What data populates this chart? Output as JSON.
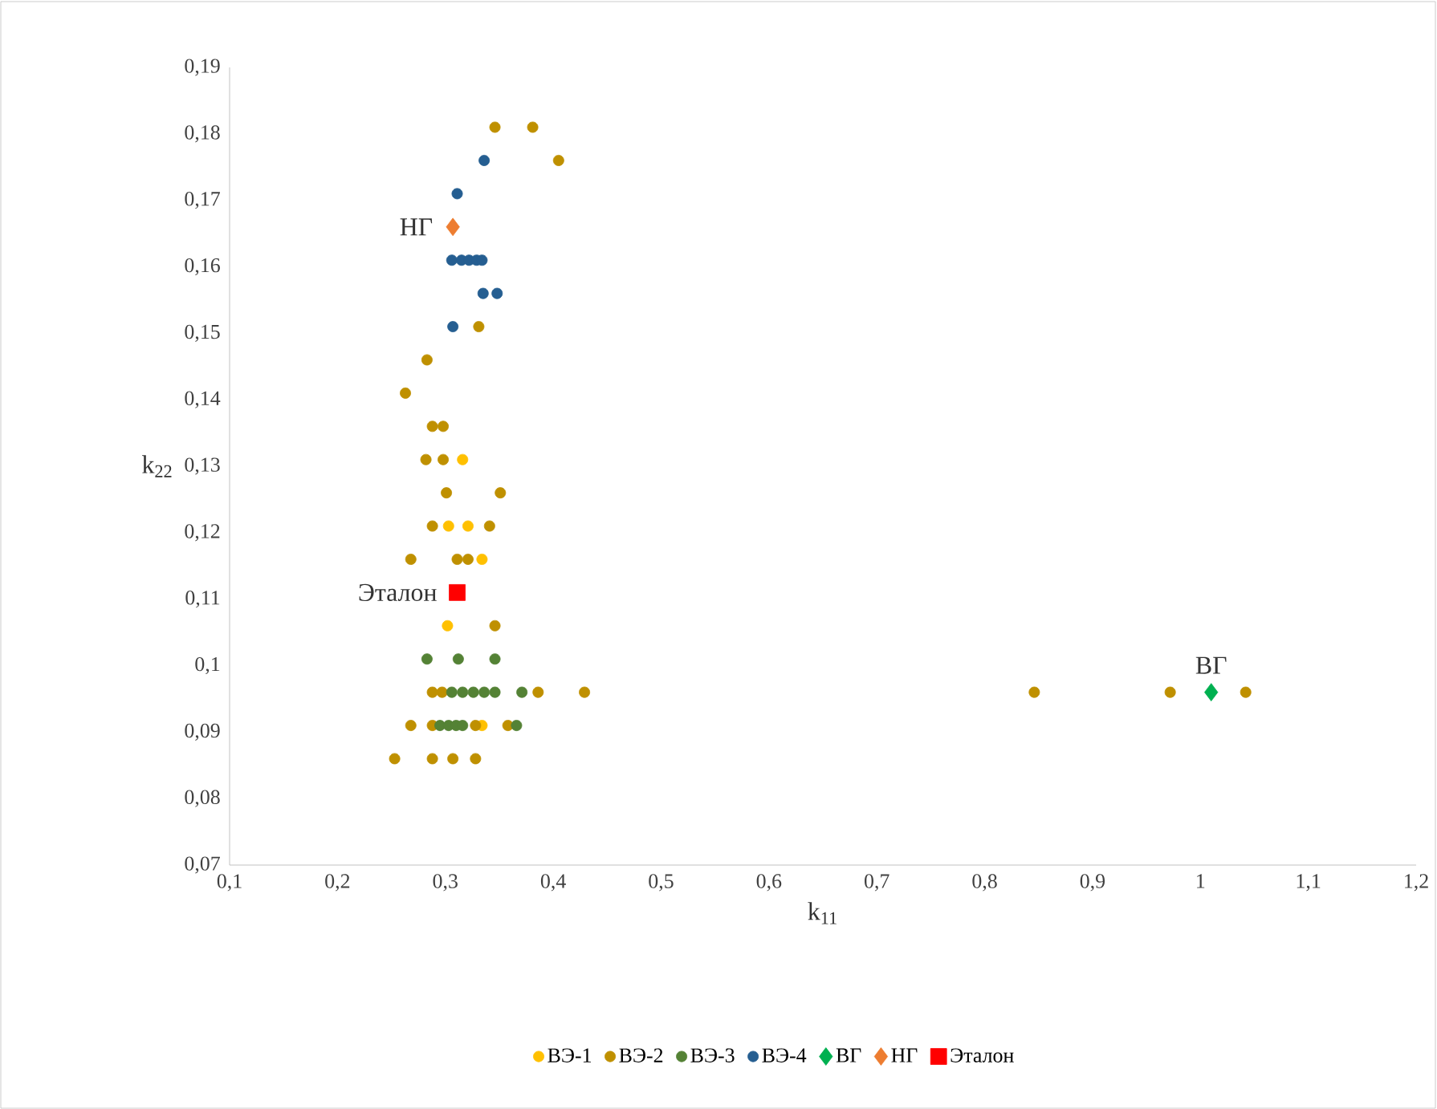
{
  "chart_data": {
    "type": "scatter",
    "xlabel": "k$_{11}$",
    "ylabel": "k$_{22}$",
    "xlim": [
      0.1,
      1.2
    ],
    "ylim": [
      0.07,
      0.19
    ],
    "xticks": [
      {
        "value": 0.1,
        "label": "0,1"
      },
      {
        "value": 0.2,
        "label": "0,2"
      },
      {
        "value": 0.3,
        "label": "0,3"
      },
      {
        "value": 0.4,
        "label": "0,4"
      },
      {
        "value": 0.5,
        "label": "0,5"
      },
      {
        "value": 0.6,
        "label": "0,6"
      },
      {
        "value": 0.7,
        "label": "0,7"
      },
      {
        "value": 0.8,
        "label": "0,8"
      },
      {
        "value": 0.9,
        "label": "0,9"
      },
      1,
      {
        "value": 1.1,
        "label": "1,1"
      },
      {
        "value": 1.2,
        "label": "1,2"
      }
    ],
    "yticks": [
      {
        "value": 0.07,
        "label": "0,07"
      },
      {
        "value": 0.08,
        "label": "0,08"
      },
      {
        "value": 0.09,
        "label": "0,09"
      },
      {
        "value": 0.1,
        "label": "0,1"
      },
      {
        "value": 0.11,
        "label": "0,11"
      },
      {
        "value": 0.12,
        "label": "0,12"
      },
      {
        "value": 0.13,
        "label": "0,13"
      },
      {
        "value": 0.14,
        "label": "0,14"
      },
      {
        "value": 0.15,
        "label": "0,15"
      },
      {
        "value": 0.16,
        "label": "0,16"
      },
      {
        "value": 0.17,
        "label": "0,17"
      },
      {
        "value": 0.18,
        "label": "0,18"
      },
      {
        "value": 0.19,
        "label": "0,19"
      }
    ],
    "legend": "bottom",
    "series": [
      {
        "name": "ВЭ-1",
        "color": "#ffc000",
        "marker": "circle",
        "x": [
          0.316,
          0.303,
          0.321,
          0.334,
          0.302,
          0.334
        ],
        "values": [
          0.131,
          0.121,
          0.121,
          0.116,
          0.106,
          0.091
        ]
      },
      {
        "name": "ВЭ-2",
        "color": "#bf9000",
        "marker": "circle",
        "x": [
          0.346,
          0.381,
          0.405,
          0.331,
          0.283,
          0.263,
          0.288,
          0.298,
          0.282,
          0.298,
          0.301,
          0.351,
          0.288,
          0.341,
          0.268,
          0.311,
          0.321,
          0.346,
          0.288,
          0.297,
          0.386,
          0.429,
          0.846,
          0.972,
          1.042,
          0.268,
          0.288,
          0.328,
          0.358,
          0.253,
          0.288,
          0.307,
          0.328
        ],
        "values": [
          0.181,
          0.181,
          0.176,
          0.151,
          0.146,
          0.141,
          0.136,
          0.136,
          0.131,
          0.131,
          0.126,
          0.126,
          0.121,
          0.121,
          0.116,
          0.116,
          0.116,
          0.106,
          0.096,
          0.096,
          0.096,
          0.096,
          0.096,
          0.096,
          0.096,
          0.091,
          0.091,
          0.091,
          0.091,
          0.086,
          0.086,
          0.086,
          0.086
        ]
      },
      {
        "name": "ВЭ-3",
        "color": "#548235",
        "marker": "circle",
        "x": [
          0.283,
          0.312,
          0.346,
          0.306,
          0.316,
          0.326,
          0.336,
          0.346,
          0.371,
          0.295,
          0.303,
          0.31,
          0.316,
          0.366
        ],
        "values": [
          0.101,
          0.101,
          0.101,
          0.096,
          0.096,
          0.096,
          0.096,
          0.096,
          0.096,
          0.091,
          0.091,
          0.091,
          0.091,
          0.091
        ]
      },
      {
        "name": "ВЭ-4",
        "color": "#255e91",
        "marker": "circle",
        "x": [
          0.336,
          0.311,
          0.306,
          0.315,
          0.322,
          0.329,
          0.334,
          0.335,
          0.348,
          0.307
        ],
        "values": [
          0.176,
          0.171,
          0.161,
          0.161,
          0.161,
          0.161,
          0.161,
          0.156,
          0.156,
          0.151
        ]
      },
      {
        "name": "ВГ",
        "color": "#00b050",
        "marker": "diamond",
        "x": [
          1.01
        ],
        "values": [
          0.096
        ]
      },
      {
        "name": "НГ",
        "color": "#ed7d31",
        "marker": "diamond",
        "x": [
          0.307
        ],
        "values": [
          0.166
        ]
      },
      {
        "name": "Эталон",
        "color": "#ff0000",
        "marker": "square",
        "x": [
          0.311
        ],
        "values": [
          0.111
        ]
      }
    ],
    "annotations": [
      {
        "text": "ВГ",
        "x": 1.01,
        "y": 0.096
      },
      {
        "text": "НГ",
        "x": 0.307,
        "y": 0.166
      },
      {
        "text": "Эталон",
        "x": 0.311,
        "y": 0.111
      }
    ]
  }
}
